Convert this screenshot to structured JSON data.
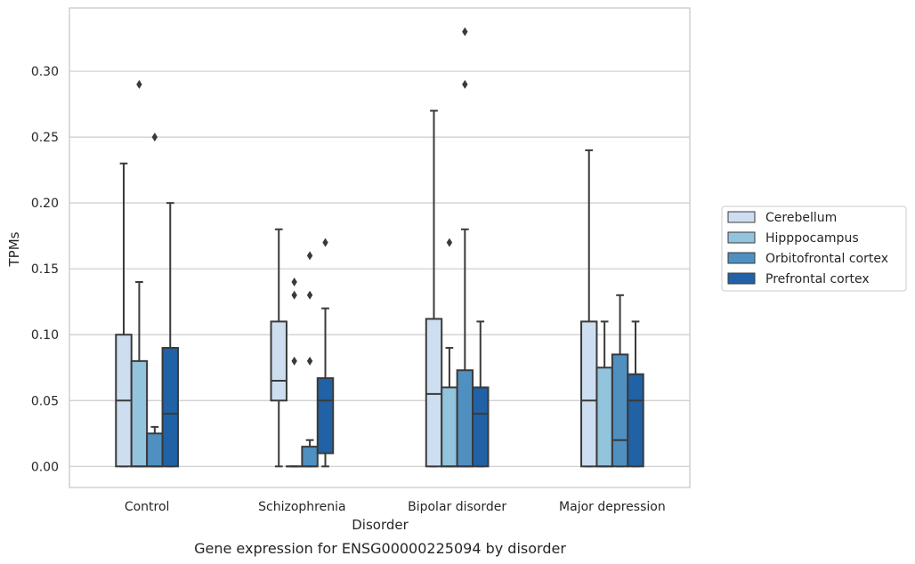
{
  "chart_data": {
    "type": "box",
    "xlabel": "Disorder",
    "ylabel": "TPMs",
    "caption": "Gene expression for ENSG00000225094 by disorder",
    "ylim": [
      -0.016,
      0.348
    ],
    "yticks": [
      "0.00",
      "0.05",
      "0.10",
      "0.15",
      "0.20",
      "0.25",
      "0.30"
    ],
    "grid": "horizontal",
    "legend_position": "right",
    "categories": [
      "Control",
      "Schizophrenia",
      "Bipolar disorder",
      "Major depression"
    ],
    "series": [
      {
        "name": "Cerebellum",
        "color": "#cddef0",
        "boxes": [
          {
            "whislo": 0.0,
            "q1": 0.0,
            "med": 0.05,
            "q3": 0.1,
            "whishi": 0.23,
            "fliers": []
          },
          {
            "whislo": 0.0,
            "q1": 0.05,
            "med": 0.065,
            "q3": 0.11,
            "whishi": 0.18,
            "fliers": []
          },
          {
            "whislo": 0.0,
            "q1": 0.0,
            "med": 0.055,
            "q3": 0.112,
            "whishi": 0.27,
            "fliers": []
          },
          {
            "whislo": 0.0,
            "q1": 0.0,
            "med": 0.05,
            "q3": 0.11,
            "whishi": 0.24,
            "fliers": []
          }
        ]
      },
      {
        "name": "Hipppocampus",
        "color": "#93c4de",
        "boxes": [
          {
            "whislo": 0.0,
            "q1": 0.0,
            "med": 0.0,
            "q3": 0.08,
            "whishi": 0.14,
            "fliers": [
              0.29
            ]
          },
          {
            "whislo": 0.0,
            "q1": 0.0,
            "med": 0.0,
            "q3": 0.0,
            "whishi": 0.0,
            "fliers": [
              0.08,
              0.13,
              0.14
            ]
          },
          {
            "whislo": 0.0,
            "q1": 0.0,
            "med": 0.0,
            "q3": 0.06,
            "whishi": 0.09,
            "fliers": [
              0.17
            ]
          },
          {
            "whislo": 0.0,
            "q1": 0.0,
            "med": 0.0,
            "q3": 0.075,
            "whishi": 0.11,
            "fliers": []
          }
        ]
      },
      {
        "name": "Orbitofrontal cortex",
        "color": "#4f90c1",
        "boxes": [
          {
            "whislo": 0.0,
            "q1": 0.0,
            "med": 0.0,
            "q3": 0.025,
            "whishi": 0.03,
            "fliers": [
              0.25
            ]
          },
          {
            "whislo": 0.0,
            "q1": 0.0,
            "med": 0.0,
            "q3": 0.015,
            "whishi": 0.02,
            "fliers": [
              0.08,
              0.13,
              0.16
            ]
          },
          {
            "whislo": 0.0,
            "q1": 0.0,
            "med": 0.0,
            "q3": 0.073,
            "whishi": 0.18,
            "fliers": [
              0.29,
              0.33
            ]
          },
          {
            "whislo": 0.0,
            "q1": 0.0,
            "med": 0.02,
            "q3": 0.085,
            "whishi": 0.13,
            "fliers": []
          }
        ]
      },
      {
        "name": "Prefrontal cortex",
        "color": "#2161a5",
        "boxes": [
          {
            "whislo": 0.0,
            "q1": 0.0,
            "med": 0.04,
            "q3": 0.09,
            "whishi": 0.2,
            "fliers": []
          },
          {
            "whislo": 0.0,
            "q1": 0.01,
            "med": 0.05,
            "q3": 0.067,
            "whishi": 0.12,
            "fliers": [
              0.17
            ]
          },
          {
            "whislo": 0.0,
            "q1": 0.0,
            "med": 0.04,
            "q3": 0.06,
            "whishi": 0.11,
            "fliers": []
          },
          {
            "whislo": 0.0,
            "q1": 0.0,
            "med": 0.05,
            "q3": 0.07,
            "whishi": 0.11,
            "fliers": []
          }
        ]
      }
    ]
  }
}
